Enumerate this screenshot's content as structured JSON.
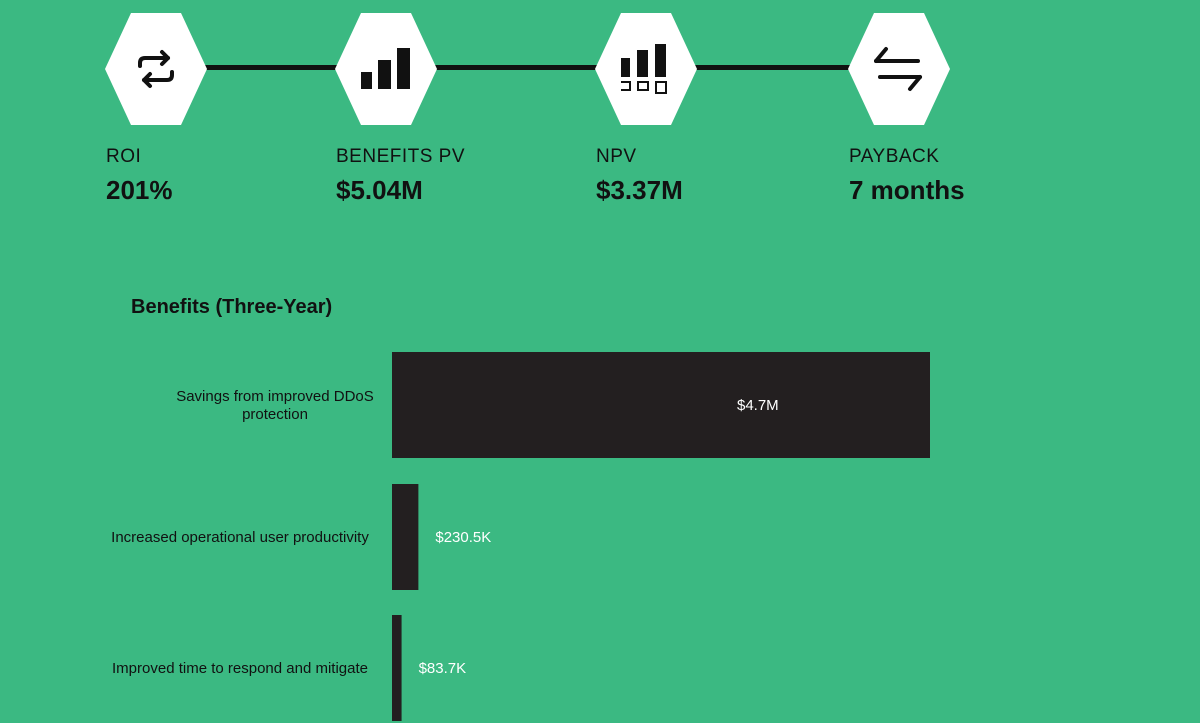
{
  "metrics": [
    {
      "label": "ROI",
      "value": "201%",
      "icon": "repeat-arrows-icon"
    },
    {
      "label": "BENEFITS PV",
      "value": "$5.04M",
      "icon": "bar-chart-icon"
    },
    {
      "label": "NPV",
      "value": "$3.37M",
      "icon": "bar-chart-boxes-icon"
    },
    {
      "label": "PAYBACK",
      "value": "7 months",
      "icon": "exchange-arrows-icon"
    }
  ],
  "colors": {
    "background": "#3bb982",
    "bar": "#231f20",
    "hexagon": "#ffffff",
    "text": "#111111",
    "value_label": "#ffffff"
  },
  "chart_data": {
    "type": "bar",
    "orientation": "horizontal",
    "title": "Benefits (Three-Year)",
    "categories": [
      [
        "Savings from improved DDoS",
        "protection"
      ],
      [
        "Increased operational user productivity"
      ],
      [
        "Improved time to respond and mitigate"
      ]
    ],
    "values": [
      4700000,
      230500,
      83700
    ],
    "value_labels": [
      "$4.7M",
      "$230.5K",
      "$83.7K"
    ],
    "xlim": [
      0,
      4700000
    ],
    "grid": false,
    "legend": "none"
  }
}
